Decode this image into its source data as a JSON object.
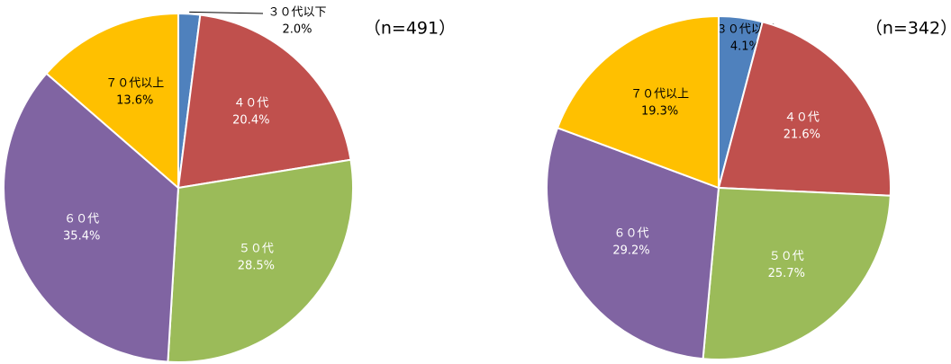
{
  "chart_data": [
    {
      "type": "pie",
      "title": "（n=491）",
      "categories": [
        "３０代以下",
        "４０代",
        "５０代",
        "６０代",
        "７０代以上"
      ],
      "values": [
        2.0,
        20.4,
        28.5,
        35.4,
        13.6
      ],
      "value_labels": [
        "2.0%",
        "20.4%",
        "28.5%",
        "35.4%",
        "13.6%"
      ],
      "colors": [
        "#4f81bd",
        "#c0504d",
        "#9bbb59",
        "#8064a2",
        "#ffc000"
      ]
    },
    {
      "type": "pie",
      "title": "（n=342）",
      "categories": [
        "３０代以下",
        "４０代",
        "５０代",
        "６０代",
        "７０代以上"
      ],
      "values": [
        4.1,
        21.6,
        25.7,
        29.2,
        19.3
      ],
      "value_labels": [
        "4.1%",
        "21.6%",
        "25.7%",
        "29.2%",
        "19.3%"
      ],
      "colors": [
        "#4f81bd",
        "#c0504d",
        "#9bbb59",
        "#8064a2",
        "#ffc000"
      ]
    }
  ]
}
